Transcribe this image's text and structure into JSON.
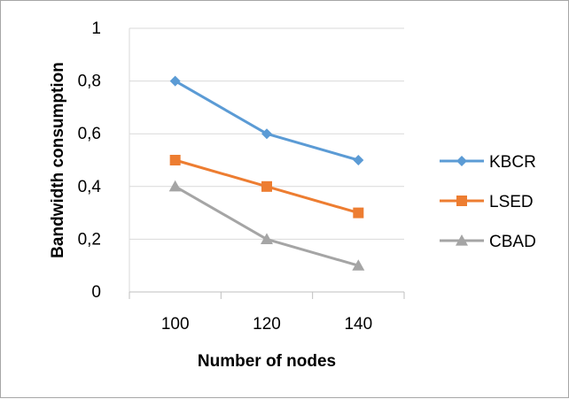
{
  "chart_data": {
    "type": "line",
    "title": "",
    "xlabel": "Number of nodes",
    "ylabel": "Bandwidth consumption",
    "categories": [
      "100",
      "120",
      "140"
    ],
    "ylim": [
      0,
      1
    ],
    "yticks": [
      0,
      0.2,
      0.4,
      0.6,
      0.8,
      1
    ],
    "ytick_labels": [
      "0",
      "0,2",
      "0,4",
      "0,6",
      "0,8",
      "1"
    ],
    "grid": true,
    "legend_position": "right",
    "series": [
      {
        "name": "KBCR",
        "values": [
          0.8,
          0.6,
          0.5
        ],
        "color": "#5b9bd5",
        "marker": "diamond"
      },
      {
        "name": "LSED",
        "values": [
          0.5,
          0.4,
          0.3
        ],
        "color": "#ed7d31",
        "marker": "square"
      },
      {
        "name": "CBAD",
        "values": [
          0.4,
          0.2,
          0.1
        ],
        "color": "#a5a5a5",
        "marker": "triangle"
      }
    ]
  }
}
